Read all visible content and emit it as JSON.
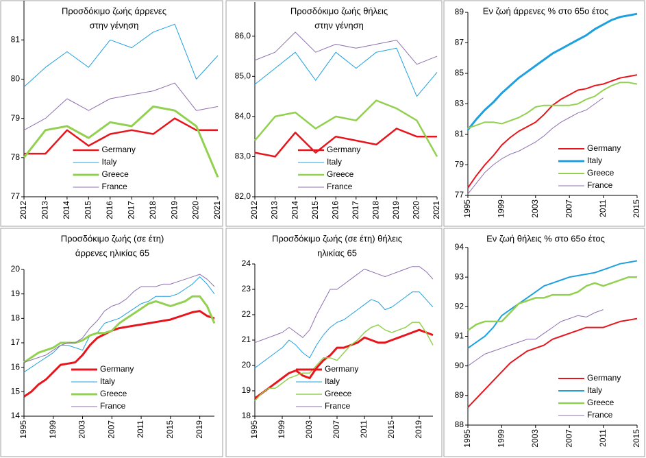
{
  "chart_data": [
    {
      "type": "line",
      "title": [
        "Προσδόκιμο ζωής άρρενες",
        "στην γένηση"
      ],
      "categories": [
        "2012",
        "2013",
        "2014",
        "2015",
        "2016",
        "2017",
        "2018",
        "2019",
        "2020",
        "2021"
      ],
      "ylim": [
        77,
        82
      ],
      "yticks": [
        77,
        78,
        79,
        80,
        81
      ],
      "legend": "lower center",
      "series": [
        {
          "name": "Germany",
          "color": "#e8141b",
          "width": 2.5,
          "values": [
            78.1,
            78.1,
            78.7,
            78.3,
            78.6,
            78.7,
            78.6,
            79.0,
            78.7,
            78.7
          ]
        },
        {
          "name": "Italy",
          "color": "#1ea0e0",
          "width": 1,
          "values": [
            79.8,
            80.3,
            80.7,
            80.3,
            81.0,
            80.8,
            81.2,
            81.4,
            80.0,
            80.6
          ]
        },
        {
          "name": "Greece",
          "color": "#92d050",
          "width": 3,
          "values": [
            78.0,
            78.7,
            78.8,
            78.5,
            78.9,
            78.8,
            79.3,
            79.2,
            78.8,
            77.5
          ]
        },
        {
          "name": "France",
          "color": "#8e6fae",
          "width": 1,
          "values": [
            78.7,
            79.0,
            79.5,
            79.2,
            79.5,
            79.6,
            79.7,
            79.9,
            79.2,
            79.3
          ]
        }
      ]
    },
    {
      "type": "line",
      "title": [
        "Προσδόκιμο ζωής θήλεις",
        "στην γένηση"
      ],
      "categories": [
        "2012",
        "2013",
        "2014",
        "2015",
        "2016",
        "2017",
        "2018",
        "2019",
        "2020",
        "2021"
      ],
      "ylim": [
        82,
        86.85
      ],
      "yticks": [
        {
          "value": 82,
          "label": "82,0"
        },
        {
          "value": 83,
          "label": "83,0"
        },
        {
          "value": 84,
          "label": "84,0"
        },
        {
          "value": 85,
          "label": "85,0"
        },
        {
          "value": 86,
          "label": "86,0"
        }
      ],
      "legend": "lower center",
      "series": [
        {
          "name": "Germany",
          "color": "#e8141b",
          "width": 2.5,
          "values": [
            83.1,
            83.0,
            83.6,
            83.1,
            83.5,
            83.4,
            83.3,
            83.7,
            83.5,
            83.5
          ]
        },
        {
          "name": "Italy",
          "color": "#1ea0e0",
          "width": 1,
          "values": [
            84.8,
            85.2,
            85.6,
            84.9,
            85.6,
            85.2,
            85.6,
            85.7,
            84.5,
            85.1
          ]
        },
        {
          "name": "Greece",
          "color": "#92d050",
          "width": 2.5,
          "values": [
            83.4,
            84.0,
            84.1,
            83.7,
            84.0,
            83.9,
            84.4,
            84.2,
            83.9,
            83.0
          ]
        },
        {
          "name": "France",
          "color": "#8e6fae",
          "width": 1,
          "values": [
            85.4,
            85.6,
            86.1,
            85.6,
            85.8,
            85.7,
            85.8,
            85.9,
            85.3,
            85.5
          ]
        }
      ]
    },
    {
      "type": "line",
      "title": [
        "Εν ζωή άρρενες % στο 65ο έτος"
      ],
      "x": [
        1995,
        1996,
        1997,
        1998,
        1999,
        2000,
        2001,
        2002,
        2003,
        2004,
        2005,
        2006,
        2007,
        2008,
        2009,
        2010,
        2011,
        2012,
        2013,
        2014,
        2015
      ],
      "xlim": [
        1995,
        2015
      ],
      "xticks": [
        1995,
        1999,
        2003,
        2007,
        2011,
        2015
      ],
      "ylim": [
        77,
        89
      ],
      "yticks": [
        77,
        79,
        81,
        83,
        85,
        87,
        89
      ],
      "legend": "lower right",
      "series": [
        {
          "name": "Germany",
          "color": "#e8141b",
          "width": 2,
          "values": [
            77.5,
            78.3,
            79.0,
            79.6,
            80.3,
            80.8,
            81.2,
            81.5,
            81.8,
            82.3,
            82.9,
            83.3,
            83.6,
            83.9,
            84.0,
            84.2,
            84.3,
            84.5,
            84.7,
            84.8,
            84.9
          ]
        },
        {
          "name": "Italy",
          "color": "#1ea0e0",
          "width": 3,
          "values": [
            81.3,
            82.0,
            82.6,
            83.1,
            83.7,
            84.2,
            84.7,
            85.1,
            85.5,
            85.9,
            86.3,
            86.6,
            86.9,
            87.2,
            87.5,
            87.9,
            88.2,
            88.5,
            88.7,
            88.8,
            88.9
          ]
        },
        {
          "name": "Greece",
          "color": "#92d050",
          "width": 2,
          "values": [
            81.4,
            81.6,
            81.8,
            81.8,
            81.7,
            81.9,
            82.1,
            82.4,
            82.8,
            82.9,
            82.9,
            82.9,
            82.9,
            83.0,
            83.3,
            83.5,
            83.9,
            84.2,
            84.4,
            84.4,
            84.3
          ]
        },
        {
          "name": "France",
          "color": "#8e6fae",
          "width": 1,
          "values": [
            77.1,
            77.8,
            78.5,
            79.0,
            79.4,
            79.7,
            79.9,
            80.2,
            80.5,
            80.9,
            81.4,
            81.8,
            82.1,
            82.4,
            82.6,
            83.0,
            83.4,
            null,
            null,
            null,
            null
          ]
        }
      ]
    },
    {
      "type": "line",
      "title": [
        "Προσδόκιμο ζωής (σε έτη)",
        "άρρενες ηλικίας 65"
      ],
      "x": [
        1995,
        1996,
        1997,
        1998,
        1999,
        2000,
        2001,
        2002,
        2003,
        2004,
        2005,
        2006,
        2007,
        2008,
        2009,
        2010,
        2011,
        2012,
        2013,
        2014,
        2015,
        2016,
        2017,
        2018,
        2019,
        2020,
        2021
      ],
      "xlim": [
        1995,
        2021
      ],
      "xticks": [
        1995,
        1999,
        2003,
        2007,
        2011,
        2015,
        2019
      ],
      "ylim": [
        14,
        20
      ],
      "yticks": [
        14,
        15,
        16,
        17,
        18,
        19,
        20
      ],
      "legend": "lower center",
      "series": [
        {
          "name": "Germany",
          "color": "#e8141b",
          "width": 3,
          "values": [
            14.8,
            15.0,
            15.3,
            15.5,
            15.8,
            16.1,
            16.15,
            16.2,
            16.5,
            16.9,
            17.2,
            17.35,
            17.5,
            17.6,
            17.65,
            17.7,
            17.75,
            17.8,
            17.85,
            17.9,
            17.95,
            18.05,
            18.15,
            18.25,
            18.3,
            18.1,
            18.0
          ]
        },
        {
          "name": "Italy",
          "color": "#1ea0e0",
          "width": 1,
          "values": [
            15.8,
            16.0,
            16.2,
            16.4,
            16.6,
            16.9,
            16.9,
            16.8,
            16.7,
            17.3,
            17.4,
            17.8,
            17.9,
            18.0,
            18.2,
            18.4,
            18.6,
            18.7,
            18.9,
            18.9,
            18.9,
            19.0,
            19.2,
            19.4,
            19.7,
            19.4,
            19.0
          ]
        },
        {
          "name": "Greece",
          "color": "#92d050",
          "width": 3,
          "values": [
            16.2,
            16.4,
            16.6,
            16.7,
            16.8,
            17.0,
            17.0,
            17.0,
            17.1,
            17.3,
            17.4,
            17.4,
            17.5,
            17.8,
            18.0,
            18.2,
            18.4,
            18.6,
            18.7,
            18.6,
            18.5,
            18.6,
            18.7,
            18.9,
            18.9,
            18.5,
            17.8
          ]
        },
        {
          "name": "France",
          "color": "#8e6fae",
          "width": 1,
          "values": [
            16.2,
            16.3,
            16.4,
            16.5,
            16.7,
            16.9,
            17.0,
            17.0,
            17.2,
            17.6,
            17.9,
            18.3,
            18.5,
            18.6,
            18.8,
            19.1,
            19.3,
            19.3,
            19.3,
            19.4,
            19.4,
            19.5,
            19.6,
            19.7,
            19.8,
            19.6,
            19.3
          ]
        }
      ]
    },
    {
      "type": "line",
      "title": [
        "Προσδόκιμο ζωής (σε έτη) θήλεις",
        "ηλικίας 65"
      ],
      "x": [
        1995,
        1996,
        1997,
        1998,
        1999,
        2000,
        2001,
        2002,
        2003,
        2004,
        2005,
        2006,
        2007,
        2008,
        2009,
        2010,
        2011,
        2012,
        2013,
        2014,
        2015,
        2016,
        2017,
        2018,
        2019,
        2020,
        2021
      ],
      "xlim": [
        1995,
        2021
      ],
      "xticks": [
        1995,
        1999,
        2003,
        2007,
        2011,
        2015,
        2019
      ],
      "ylim": [
        18,
        24
      ],
      "yticks": [
        18,
        19,
        20,
        21,
        22,
        23,
        24
      ],
      "legend": "lower center",
      "series": [
        {
          "name": "Germany",
          "color": "#e8141b",
          "width": 3,
          "values": [
            18.7,
            18.9,
            19.1,
            19.3,
            19.5,
            19.7,
            19.8,
            19.6,
            19.5,
            19.9,
            20.2,
            20.4,
            20.7,
            20.7,
            20.8,
            20.9,
            21.1,
            21.0,
            20.9,
            20.9,
            21.0,
            21.1,
            21.2,
            21.3,
            21.4,
            21.3,
            21.2
          ]
        },
        {
          "name": "Italy",
          "color": "#1ea0e0",
          "width": 1,
          "values": [
            19.9,
            20.1,
            20.3,
            20.5,
            20.7,
            21.0,
            20.8,
            20.5,
            20.3,
            20.8,
            21.2,
            21.5,
            21.7,
            21.8,
            22.0,
            22.2,
            22.4,
            22.6,
            22.5,
            22.2,
            22.3,
            22.5,
            22.7,
            22.9,
            22.9,
            22.6,
            22.3
          ]
        },
        {
          "name": "Greece",
          "color": "#92d050",
          "width": 1.5,
          "values": [
            18.6,
            18.9,
            19.1,
            19.1,
            19.3,
            19.5,
            19.6,
            19.7,
            19.7,
            20.0,
            20.3,
            20.3,
            20.2,
            20.5,
            20.8,
            21.0,
            21.3,
            21.5,
            21.6,
            21.4,
            21.3,
            21.4,
            21.5,
            21.7,
            21.7,
            21.3,
            20.8
          ]
        },
        {
          "name": "France",
          "color": "#8e6fae",
          "width": 1,
          "values": [
            20.9,
            21.0,
            21.1,
            21.2,
            21.3,
            21.5,
            21.3,
            21.1,
            21.4,
            22.0,
            22.5,
            23.0,
            23.0,
            23.2,
            23.4,
            23.6,
            23.8,
            23.7,
            23.6,
            23.5,
            23.6,
            23.7,
            23.8,
            23.9,
            23.9,
            23.7,
            23.4
          ]
        }
      ]
    },
    {
      "type": "line",
      "title": [
        "Εν ζωή θήλεις % στο 65ο έτος"
      ],
      "x": [
        1995,
        1996,
        1997,
        1998,
        1999,
        2000,
        2001,
        2002,
        2003,
        2004,
        2005,
        2006,
        2007,
        2008,
        2009,
        2010,
        2011,
        2012,
        2013,
        2014,
        2015
      ],
      "xlim": [
        1995,
        2015
      ],
      "xticks": [
        1995,
        1999,
        2003,
        2007,
        2011,
        2015
      ],
      "ylim": [
        88,
        94
      ],
      "yticks": [
        88,
        89,
        90,
        91,
        92,
        93,
        94
      ],
      "legend": "lower right",
      "series": [
        {
          "name": "Germany",
          "color": "#e8141b",
          "width": 2,
          "values": [
            88.6,
            88.9,
            89.2,
            89.5,
            89.8,
            90.1,
            90.3,
            90.5,
            90.6,
            90.7,
            90.9,
            91.0,
            91.1,
            91.2,
            91.3,
            91.3,
            91.3,
            91.4,
            91.5,
            91.55,
            91.6
          ]
        },
        {
          "name": "Italy",
          "color": "#1ea0e0",
          "width": 2,
          "values": [
            90.6,
            90.8,
            91.0,
            91.3,
            91.7,
            91.9,
            92.1,
            92.3,
            92.5,
            92.7,
            92.8,
            92.9,
            93.0,
            93.05,
            93.1,
            93.15,
            93.25,
            93.35,
            93.45,
            93.5,
            93.55
          ]
        },
        {
          "name": "Greece",
          "color": "#92d050",
          "width": 2.5,
          "values": [
            91.2,
            91.4,
            91.5,
            91.5,
            91.5,
            91.8,
            92.1,
            92.2,
            92.3,
            92.3,
            92.4,
            92.4,
            92.4,
            92.5,
            92.7,
            92.8,
            92.7,
            92.8,
            92.9,
            93.0,
            93.0
          ]
        },
        {
          "name": "France",
          "color": "#8e6fae",
          "width": 1,
          "values": [
            90.0,
            90.2,
            90.4,
            90.5,
            90.6,
            90.7,
            90.8,
            90.9,
            90.9,
            91.1,
            91.3,
            91.5,
            91.6,
            91.7,
            91.65,
            91.8,
            91.9,
            null,
            null,
            null,
            null
          ]
        }
      ]
    }
  ]
}
